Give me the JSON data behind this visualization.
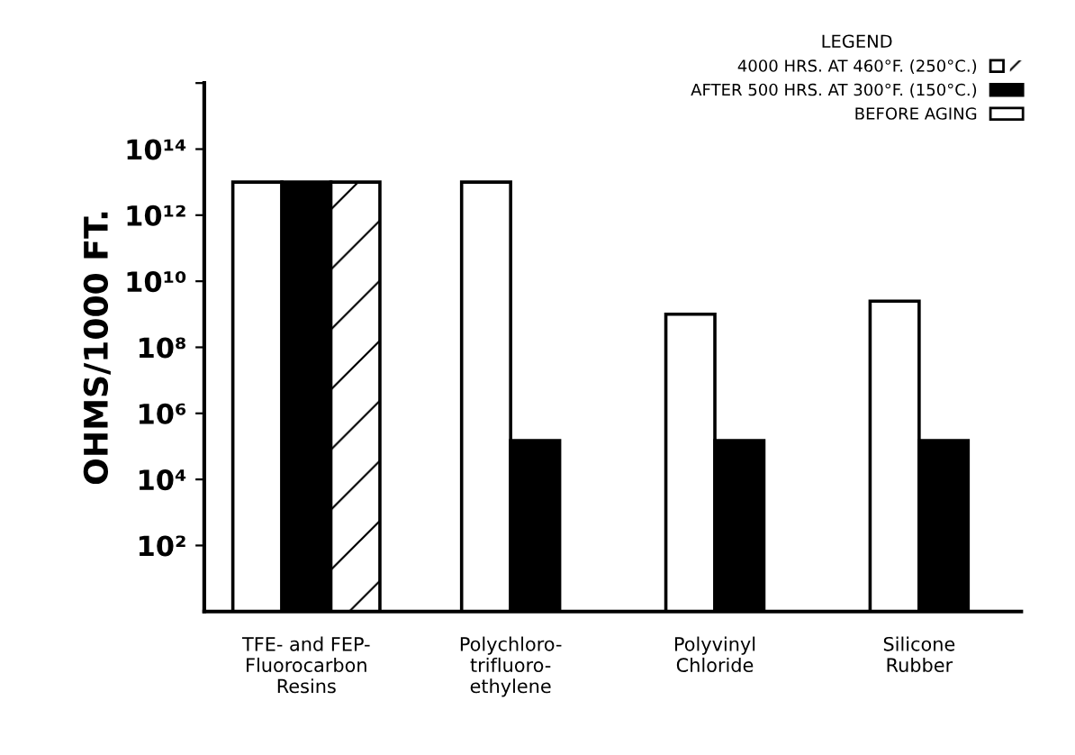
{
  "chart_data": {
    "type": "bar",
    "ylabel": "OHMS/1000 FT.",
    "log": "y",
    "legend": "top right",
    "legend_title": "LEGEND",
    "categories": [
      "TFE- and FEP-\nFluorocarbon\nResins",
      "Polychloro-\ntrifluoro-\nethylene",
      "Polyvinyl\nChloride",
      "Silicone\nRubber"
    ],
    "series": [
      {
        "name": "BEFORE AGING",
        "color": "#ffffff",
        "values": [
          10000000000000.0,
          10000000000000.0,
          1000000000.0,
          2500000000.0
        ]
      },
      {
        "name": "AFTER 500 HRS. AT 300°F. (150°C.)",
        "color": "#000000",
        "values": [
          10000000000000.0,
          150000.0,
          150000.0,
          150000.0
        ]
      },
      {
        "name": "4000 HRS. AT 460°F. (250°C.)",
        "color": "#ffffff",
        "values": [
          10000000000000.0,
          null,
          null,
          null
        ]
      }
    ],
    "ylim": [
      1,
      1e+16
    ],
    "yticks": [
      {
        "value": 100,
        "label": "10²"
      },
      {
        "value": 10000,
        "label": "10⁴"
      },
      {
        "value": 1000000.0,
        "label": "10⁶"
      },
      {
        "value": 100000000.0,
        "label": "10⁸"
      },
      {
        "value": 10000000000.0,
        "label": "10¹⁰"
      },
      {
        "value": 1000000000000.0,
        "label": "10¹²"
      },
      {
        "value": 100000000000000.0,
        "label": "10¹⁴"
      },
      {
        "value": 1e+16,
        "label": null
      }
    ]
  }
}
